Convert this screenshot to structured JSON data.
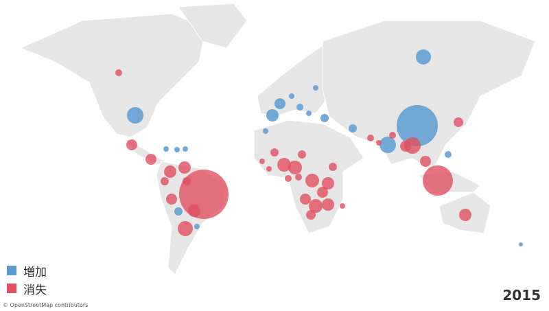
{
  "legend": {
    "items": [
      {
        "label": "増加",
        "color": "#5b9bd0"
      },
      {
        "label": "消失",
        "color": "#e0505f"
      }
    ]
  },
  "year": "2015",
  "attribution": "© OpenStreetMap contributors"
}
